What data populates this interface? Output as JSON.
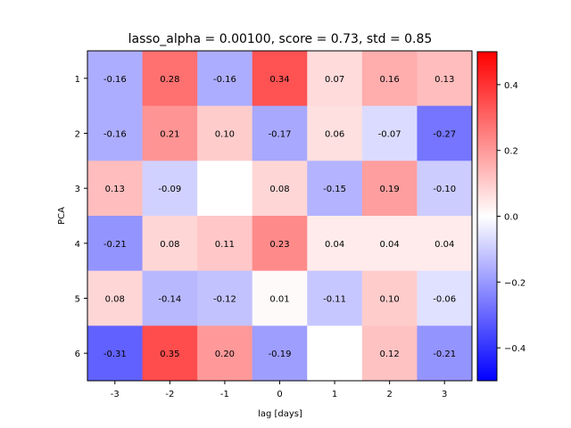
{
  "chart_data": {
    "type": "heatmap",
    "title": "lasso_alpha = 0.00100, score = 0.73, std = 0.85",
    "xlabel": "lag [days]",
    "ylabel": "PCA",
    "x_categories": [
      "-3",
      "-2",
      "-1",
      "0",
      "1",
      "2",
      "3"
    ],
    "y_categories": [
      "1",
      "2",
      "3",
      "4",
      "5",
      "6"
    ],
    "values": [
      [
        -0.16,
        0.28,
        -0.16,
        0.34,
        0.07,
        0.16,
        0.13
      ],
      [
        -0.16,
        0.21,
        0.1,
        -0.17,
        0.06,
        -0.07,
        -0.27
      ],
      [
        0.13,
        -0.09,
        null,
        0.08,
        -0.15,
        0.19,
        -0.1
      ],
      [
        -0.21,
        0.08,
        0.11,
        0.23,
        0.04,
        0.04,
        0.04
      ],
      [
        0.08,
        -0.14,
        -0.12,
        0.01,
        -0.11,
        0.1,
        -0.06
      ],
      [
        -0.31,
        0.35,
        0.2,
        -0.19,
        null,
        0.12,
        -0.21
      ]
    ],
    "colormap": "bwr",
    "vmin": -0.5,
    "vmax": 0.5,
    "colorbar_ticks": [
      "0.4",
      "0.2",
      "0.0",
      "−0.2",
      "−0.4"
    ],
    "colorbar_tick_values": [
      0.4,
      0.2,
      0.0,
      -0.2,
      -0.4
    ]
  }
}
